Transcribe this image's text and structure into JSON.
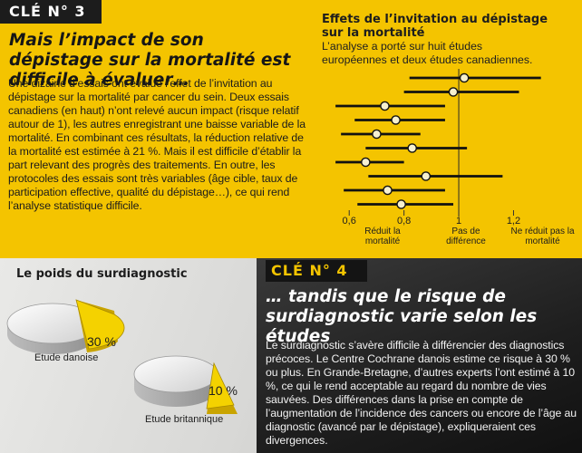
{
  "key3": {
    "tag": "CLÉ N° 3",
    "headline": "Mais l’impact de son dépistage sur la mortalité est difficile à évaluer…",
    "body": "Une dizaine d’essais ont évalué l’effet de l’invitation au dépistage sur la mortalité par cancer du sein. Deux essais canadiens (en haut) n’ont relevé aucun impact (risque relatif autour de 1), les autres enregistrant une baisse variable de la mortalité. En combinant ces résultats, la réduction relative de la mortalité est estimée à 21 %. Mais il est difficile d’établir la part relevant des progrès des traitements. En outre, les protocoles des essais sont très variables (âge cible, taux de participation effective, qualité du dépistage…), ce qui rend l’analyse statistique difficile."
  },
  "forest_chart": {
    "title": "Effets de l’invitation au dépistage sur la mortalité",
    "subtitle": "L’analyse a porté sur huit études européennes et deux études canadiennes.",
    "label_reduced": "Réduit la mortalité",
    "label_nodiff": "Pas de différence",
    "label_notreduced": "Ne réduit pas la mortalité",
    "accent": "#f4c400"
  },
  "chart_data": {
    "type": "forest",
    "x_ticks": [
      "0,6",
      "0,8",
      "1",
      "1,2"
    ],
    "xlim": [
      0.5,
      1.45
    ],
    "reference_line": 1.0,
    "studies": [
      {
        "estimate": 1.02,
        "low": 0.82,
        "high": 1.3
      },
      {
        "estimate": 0.98,
        "low": 0.8,
        "high": 1.22
      },
      {
        "estimate": 0.73,
        "low": 0.55,
        "high": 0.95
      },
      {
        "estimate": 0.77,
        "low": 0.62,
        "high": 0.95
      },
      {
        "estimate": 0.7,
        "low": 0.57,
        "high": 0.86
      },
      {
        "estimate": 0.83,
        "low": 0.66,
        "high": 1.03
      },
      {
        "estimate": 0.66,
        "low": 0.55,
        "high": 0.8
      },
      {
        "estimate": 0.88,
        "low": 0.67,
        "high": 1.16
      },
      {
        "estimate": 0.74,
        "low": 0.58,
        "high": 0.95
      },
      {
        "estimate": 0.79,
        "low": 0.63,
        "high": 0.98
      }
    ]
  },
  "overdiagnosis": {
    "title": "Le poids du surdiagnostic",
    "danish_label": "Etude danoise",
    "danish_pct": "30 %",
    "danish_value": 30,
    "british_label": "Etude britannique",
    "british_pct": "10 %",
    "british_value": 10
  },
  "key4": {
    "tag": "CLÉ N° 4",
    "headline": "… tandis que le risque de surdiagnostic varie selon les études",
    "body": "Le surdiagnostic s’avère difficile à différencier des diagnostics précoces. Le Centre Cochrane danois estime ce risque à 30 % ou plus. En Grande-Bretagne, d’autres experts l’ont estimé à 10 %, ce qui le rend acceptable au regard du nombre de vies sauvées. Des différences dans la prise en compte de l’augmentation de l’incidence des cancers ou encore de l’âge au diagnostic (avancé par le dépistage), expliqueraient ces divergences."
  }
}
